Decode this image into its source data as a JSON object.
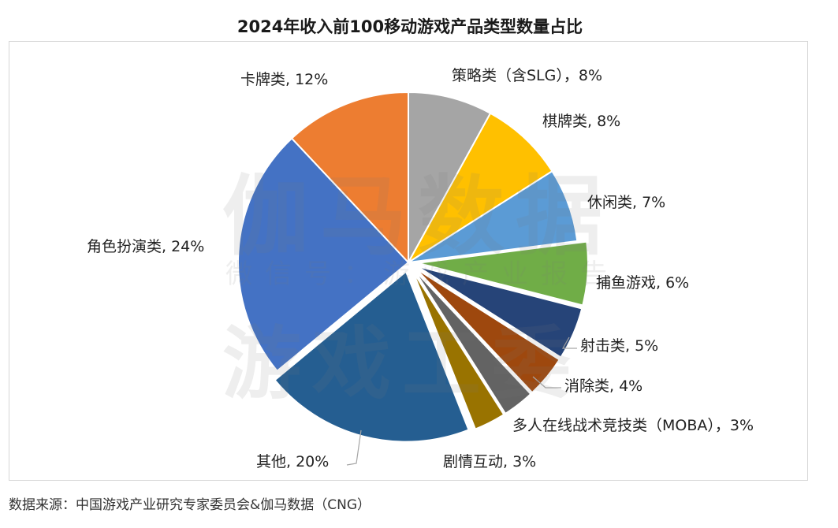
{
  "chart_data": {
    "type": "pie",
    "title": "2024年收入前100移动游戏产品类型数量占比",
    "slices": [
      {
        "label": "策略类（含SLG）",
        "value": 8,
        "display": "策略类（含SLG），8%",
        "color": "#a5a5a5"
      },
      {
        "label": "棋牌类",
        "value": 8,
        "display": "棋牌类, 8%",
        "color": "#ffc000"
      },
      {
        "label": "休闲类",
        "value": 7,
        "display": "休闲类, 7%",
        "color": "#5b9bd5"
      },
      {
        "label": "捕鱼游戏",
        "value": 6,
        "display": "捕鱼游戏, 6%",
        "color": "#70ad47"
      },
      {
        "label": "射击类",
        "value": 5,
        "display": "射击类, 5%",
        "color": "#264478"
      },
      {
        "label": "消除类",
        "value": 4,
        "display": "消除类, 4%",
        "color": "#9e480e"
      },
      {
        "label": "多人在线战术竞技类（MOBA）",
        "value": 3,
        "display": "多人在线战术竞技类（MOBA），3%",
        "color": "#636363"
      },
      {
        "label": "剧情互动",
        "value": 3,
        "display": "剧情互动, 3%",
        "color": "#997300"
      },
      {
        "label": "其他",
        "value": 20,
        "display": "其他, 20%",
        "color": "#255e91"
      },
      {
        "label": "角色扮演类",
        "value": 24,
        "display": "角色扮演类, 24%",
        "color": "#4472c4"
      },
      {
        "label": "卡牌类",
        "value": 12,
        "display": "卡牌类, 12%",
        "color": "#ed7d31"
      }
    ]
  },
  "watermark": {
    "line1": "伽马数据",
    "line2": "微信号：游戏产业报告",
    "line3": "游戏工委"
  },
  "source_note": "数据来源：中国游戏产业研究专家委员会&伽马数据（CNG）"
}
